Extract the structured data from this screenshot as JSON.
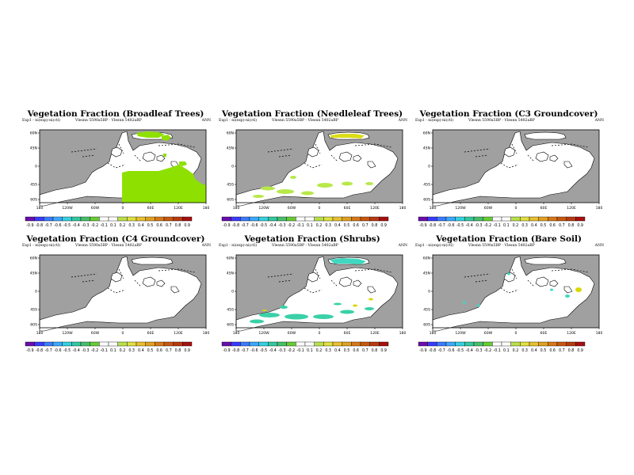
{
  "common": {
    "subtitle_left": "Exp1 - ni(exp)-ni(ctl)",
    "subtitle_mid": "Vlesnn 5590a5BP - Vlesnn 5402aBP",
    "subtitle_right": "ANN",
    "lat_labels": [
      "60N",
      "45N",
      "0",
      "45S",
      "60S"
    ],
    "lon_labels": [
      "180",
      "120W",
      "60W",
      "0",
      "60E",
      "120E",
      "180"
    ],
    "colorbar_labels": [
      "-0.9",
      "-0.8",
      "-0.7",
      "-0.6",
      "-0.5",
      "-0.4",
      "-0.3",
      "-0.2",
      "-0.1",
      "0.1",
      "0.2",
      "0.3",
      "0.4",
      "0.5",
      "0.6",
      "0.7",
      "0.8",
      "0.9"
    ],
    "colorbar_colors": [
      "#6a0dad",
      "#3a3aff",
      "#3b7bff",
      "#3aa9ff",
      "#35d0e0",
      "#33c9a0",
      "#46c06a",
      "#66cc33",
      "#ffffff",
      "#ffffff",
      "#b8e04a",
      "#e0e040",
      "#e8c030",
      "#e0a020",
      "#d87818",
      "#c85810",
      "#b83a10",
      "#a81010"
    ],
    "colors": {
      "ocean": "#a0a0a0",
      "land_zero": "#ffffff",
      "land_light": "#e6e6e6",
      "pos_green": "#8ee000",
      "pos_yellow": "#d8d800",
      "neg_green": "#b8e84a",
      "cyan": "#40d8c0",
      "teal": "#3ad0a8",
      "coast": "#000000"
    }
  },
  "chart_data": [
    {
      "type": "heatmap",
      "title": "Vegetation Fraction (Broadleaf Trees)",
      "variable": "broadleaf_trees",
      "xlabel": "",
      "ylabel": "",
      "levels": [
        -0.9,
        -0.8,
        -0.7,
        -0.6,
        -0.5,
        -0.4,
        -0.3,
        -0.2,
        -0.1,
        0.1,
        0.2,
        0.3,
        0.4,
        0.5,
        0.6,
        0.7,
        0.8,
        0.9
      ],
      "land_value": 0.0,
      "regions": [
        {
          "name": "southern-continent",
          "value": 0.25
        },
        {
          "name": "northern-island",
          "value": 0.25
        },
        {
          "name": "small-islands",
          "value": 0.25
        }
      ]
    },
    {
      "type": "heatmap",
      "title": "Vegetation Fraction (Needleleaf Trees)",
      "variable": "needleleaf_trees",
      "levels": [
        -0.9,
        -0.8,
        -0.7,
        -0.6,
        -0.5,
        -0.4,
        -0.3,
        -0.2,
        -0.1,
        0.1,
        0.2,
        0.3,
        0.4,
        0.5,
        0.6,
        0.7,
        0.8,
        0.9
      ],
      "land_value": -0.05,
      "regions": [
        {
          "name": "northern-island",
          "value": 0.4
        },
        {
          "name": "southern-patches",
          "value": 0.15
        }
      ]
    },
    {
      "type": "heatmap",
      "title": "Vegetation Fraction (C3 Groundcover)",
      "variable": "c3_groundcover",
      "levels": [
        -0.9,
        -0.8,
        -0.7,
        -0.6,
        -0.5,
        -0.4,
        -0.3,
        -0.2,
        -0.1,
        0.1,
        0.2,
        0.3,
        0.4,
        0.5,
        0.6,
        0.7,
        0.8,
        0.9
      ],
      "land_value": 0.0,
      "regions": []
    },
    {
      "type": "heatmap",
      "title": "Vegetation Fraction (C4 Groundcover)",
      "variable": "c4_groundcover",
      "levels": [
        -0.9,
        -0.8,
        -0.7,
        -0.6,
        -0.5,
        -0.4,
        -0.3,
        -0.2,
        -0.1,
        0.1,
        0.2,
        0.3,
        0.4,
        0.5,
        0.6,
        0.7,
        0.8,
        0.9
      ],
      "land_value": 0.0,
      "regions": []
    },
    {
      "type": "heatmap",
      "title": "Vegetation Fraction (Shrubs)",
      "variable": "shrubs",
      "levels": [
        -0.9,
        -0.8,
        -0.7,
        -0.6,
        -0.5,
        -0.4,
        -0.3,
        -0.2,
        -0.1,
        0.1,
        0.2,
        0.3,
        0.4,
        0.5,
        0.6,
        0.7,
        0.8,
        0.9
      ],
      "land_value": -0.05,
      "regions": [
        {
          "name": "northern-island",
          "value": -0.5
        },
        {
          "name": "southern-patches",
          "value": -0.45
        }
      ]
    },
    {
      "type": "heatmap",
      "title": "Vegetation Fraction (Bare Soil)",
      "variable": "bare_soil",
      "levels": [
        -0.9,
        -0.8,
        -0.7,
        -0.6,
        -0.5,
        -0.4,
        -0.3,
        -0.2,
        -0.1,
        0.1,
        0.2,
        0.3,
        0.4,
        0.5,
        0.6,
        0.7,
        0.8,
        0.9
      ],
      "land_value": 0.05,
      "regions": [
        {
          "name": "small-patches",
          "value": -0.45
        },
        {
          "name": "east-patch",
          "value": 0.3
        }
      ]
    }
  ]
}
